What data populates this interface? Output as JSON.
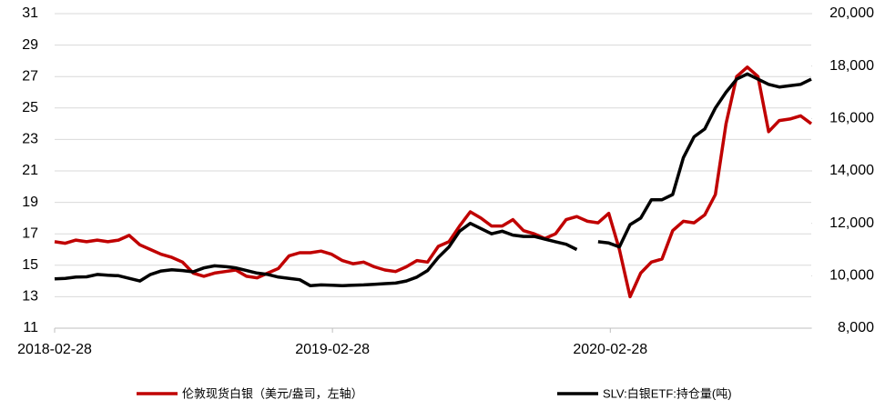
{
  "chart_data": {
    "type": "line",
    "x": [
      "2018-02-28",
      "2018-03-14",
      "2018-03-28",
      "2018-04-11",
      "2018-04-25",
      "2018-05-09",
      "2018-05-23",
      "2018-06-06",
      "2018-06-20",
      "2018-07-04",
      "2018-07-18",
      "2018-08-01",
      "2018-08-15",
      "2018-08-29",
      "2018-09-12",
      "2018-09-26",
      "2018-10-10",
      "2018-10-24",
      "2018-11-07",
      "2018-11-21",
      "2018-12-05",
      "2018-12-19",
      "2019-01-02",
      "2019-01-16",
      "2019-01-30",
      "2019-02-13",
      "2019-02-27",
      "2019-03-13",
      "2019-03-27",
      "2019-04-10",
      "2019-04-24",
      "2019-05-08",
      "2019-05-22",
      "2019-06-05",
      "2019-06-19",
      "2019-07-03",
      "2019-07-17",
      "2019-07-31",
      "2019-08-14",
      "2019-08-28",
      "2019-09-11",
      "2019-09-25",
      "2019-10-09",
      "2019-10-23",
      "2019-11-06",
      "2019-11-20",
      "2019-12-04",
      "2019-12-18",
      "2020-01-01",
      "2020-01-15",
      "2020-01-29",
      "2020-02-12",
      "2020-02-26",
      "2020-03-11",
      "2020-03-25",
      "2020-04-08",
      "2020-04-22",
      "2020-05-06",
      "2020-05-20",
      "2020-06-03",
      "2020-06-17",
      "2020-07-01",
      "2020-07-15",
      "2020-07-29",
      "2020-08-12",
      "2020-08-26",
      "2020-09-09",
      "2020-09-23",
      "2020-10-07",
      "2020-10-21",
      "2020-11-04",
      "2020-11-18"
    ],
    "series": [
      {
        "name": "伦敦现货白银（美元/盎司，左轴）",
        "color": "#c00000",
        "values": [
          16.5,
          16.4,
          16.6,
          16.5,
          16.6,
          16.5,
          16.6,
          16.9,
          16.3,
          16.0,
          15.7,
          15.5,
          15.2,
          14.5,
          14.3,
          14.5,
          14.6,
          14.7,
          14.3,
          14.2,
          14.5,
          14.8,
          15.6,
          15.8,
          15.8,
          15.9,
          15.7,
          15.3,
          15.1,
          15.2,
          14.9,
          14.7,
          14.6,
          14.9,
          15.3,
          15.2,
          16.2,
          16.5,
          17.5,
          18.4,
          18.0,
          17.5,
          17.5,
          17.9,
          17.2,
          17.0,
          16.7,
          17.0,
          17.9,
          18.1,
          17.8,
          17.7,
          18.3,
          16.0,
          13.0,
          14.5,
          15.2,
          15.4,
          17.2,
          17.8,
          17.7,
          18.2,
          19.5,
          24.0,
          27.0,
          27.6,
          27.0,
          23.5,
          24.2,
          24.3,
          24.5,
          24.0
        ]
      },
      {
        "name": "SLV:白银ETF:持仓量(吨)",
        "color": "#000000",
        "axis": "y2",
        "values": [
          9880,
          9900,
          9950,
          9960,
          10050,
          10020,
          10000,
          9900,
          9800,
          10050,
          10180,
          10230,
          10200,
          10150,
          10300,
          10380,
          10350,
          10300,
          10200,
          10100,
          10050,
          9950,
          9900,
          9850,
          9620,
          9650,
          9640,
          9620,
          9640,
          9650,
          9670,
          9700,
          9720,
          9800,
          9950,
          10200,
          10700,
          11100,
          11700,
          12000,
          11800,
          11600,
          11700,
          11550,
          11500,
          11500,
          11400,
          11300,
          11200,
          11000,
          null,
          11300,
          11250,
          11100,
          11950,
          12200,
          12900,
          12900,
          13100,
          14500,
          15300,
          15600,
          16400,
          17000,
          17500,
          17700,
          17500,
          17300,
          17200,
          17250,
          17300,
          17500
        ]
      }
    ],
    "xlim": [
      "2018-02-28",
      "2020-11-18"
    ],
    "xticks": [
      "2018-02-28",
      "2019-02-28",
      "2020-02-28"
    ],
    "ylim": [
      11,
      31
    ],
    "yticks": [
      11,
      13,
      15,
      17,
      19,
      21,
      23,
      25,
      27,
      29,
      31
    ],
    "y2lim": [
      8000,
      20000
    ],
    "y2ticks": [
      {
        "value": 8000,
        "label": "8,000"
      },
      {
        "value": 10000,
        "label": "10,000"
      },
      {
        "value": 12000,
        "label": "12,000"
      },
      {
        "value": 14000,
        "label": "14,000"
      },
      {
        "value": 16000,
        "label": "16,000"
      },
      {
        "value": 18000,
        "label": "18,000"
      },
      {
        "value": 20000,
        "label": "20,000"
      }
    ],
    "grid": true,
    "legend": "bottom"
  }
}
